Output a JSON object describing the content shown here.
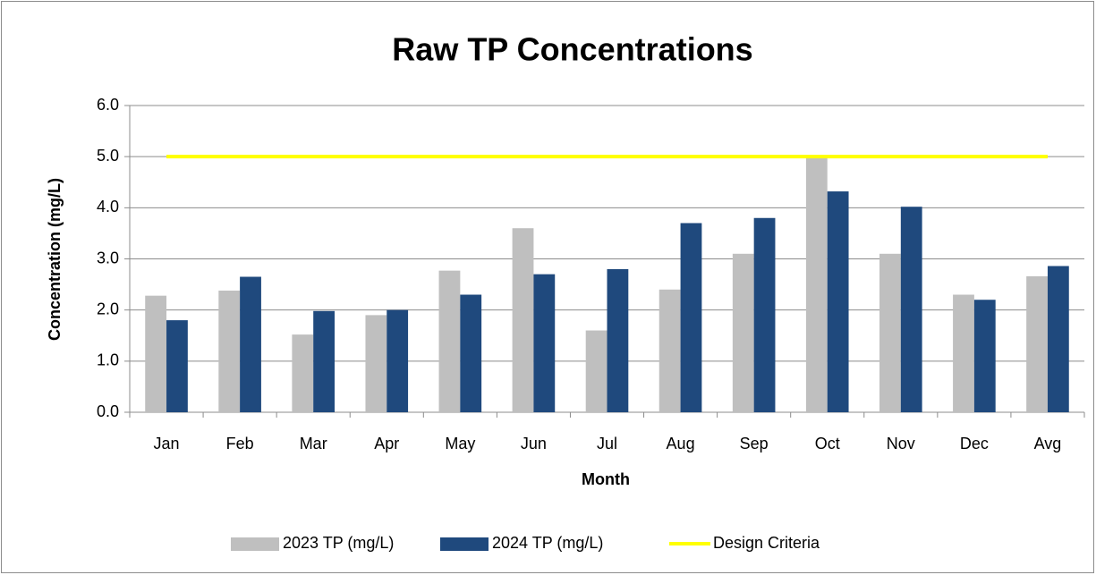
{
  "chart_data": {
    "type": "bar",
    "title": "Raw TP Concentrations",
    "x_label": "Month",
    "y_label": "Concentration (mg/L)",
    "categories": [
      "Jan",
      "Feb",
      "Mar",
      "Apr",
      "May",
      "Jun",
      "Jul",
      "Aug",
      "Sep",
      "Oct",
      "Nov",
      "Dec",
      "Avg"
    ],
    "series": [
      {
        "name": "2023 TP (mg/L)",
        "color": "#bfbfbf",
        "type": "bar",
        "values": [
          2.28,
          2.38,
          1.52,
          1.9,
          2.77,
          3.6,
          1.6,
          2.4,
          3.1,
          4.97,
          3.1,
          2.3,
          2.66
        ]
      },
      {
        "name": "2024 TP (mg/L)",
        "color": "#1f497d",
        "type": "bar",
        "values": [
          1.8,
          2.65,
          1.98,
          2.0,
          2.3,
          2.7,
          2.8,
          3.7,
          3.8,
          4.32,
          4.02,
          2.2,
          2.86
        ]
      },
      {
        "name": "Design Criteria",
        "color": "#ffff00",
        "type": "line",
        "values": [
          5,
          5,
          5,
          5,
          5,
          5,
          5,
          5,
          5,
          5,
          5,
          5,
          5
        ]
      }
    ],
    "ylim": [
      0,
      6
    ],
    "yticks": [
      {
        "value": 0,
        "label": "0.0"
      },
      {
        "value": 1,
        "label": "1.0"
      },
      {
        "value": 2,
        "label": "2.0"
      },
      {
        "value": 3,
        "label": "3.0"
      },
      {
        "value": 4,
        "label": "4.0"
      },
      {
        "value": 5,
        "label": "5.0"
      },
      {
        "value": 6,
        "label": "6.0"
      }
    ],
    "grid": true,
    "legend": "bottom"
  }
}
